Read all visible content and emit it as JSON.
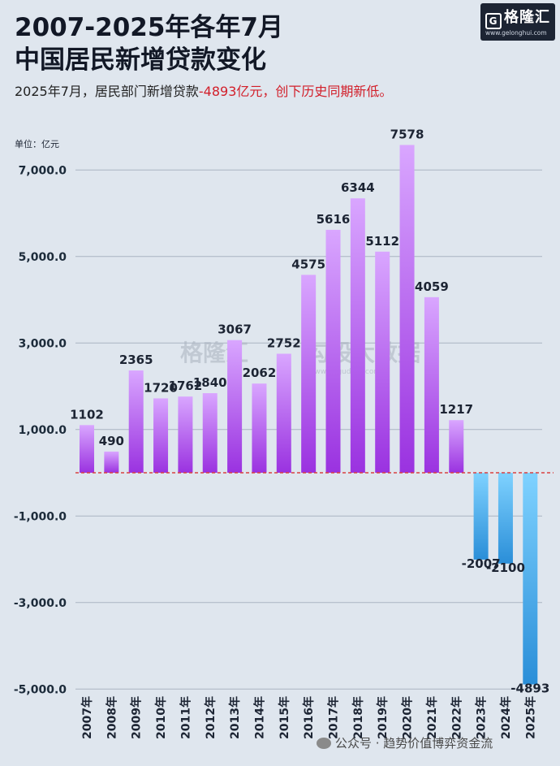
{
  "header": {
    "title_line1": "2007-2025年各年7月",
    "title_line2": "中国居民新增贷款变化",
    "subtitle_prefix": "2025年7月，居民部门新增贷款",
    "subtitle_highlight": "-4893亿元，创下历史同期新低。"
  },
  "logo": {
    "brand": "格隆汇",
    "url": "www.gelonghui.com"
  },
  "watermark": {
    "brand": "格隆汇",
    "product": "勾股大数据",
    "url": "www.gogudata.com"
  },
  "footer": {
    "text": "公众号 · 趋势价值博弈资金流"
  },
  "colors": {
    "positive_top": "#d9a6ff",
    "positive_bottom": "#9a32e0",
    "negative_top": "#7fd2ff",
    "negative_bottom": "#2a8ed8",
    "zero_line": "#d94040",
    "gridline": "#aab4c2"
  },
  "chart_data": {
    "type": "bar",
    "unit_label": "单位：亿元",
    "categories": [
      "2007年",
      "2008年",
      "2009年",
      "2010年",
      "2011年",
      "2012年",
      "2013年",
      "2014年",
      "2015年",
      "2016年",
      "2017年",
      "2018年",
      "2019年",
      "2020年",
      "2021年",
      "2022年",
      "2023年",
      "2024年",
      "2025年"
    ],
    "values": [
      1102,
      490,
      2365,
      1720,
      1762,
      1840,
      3067,
      2062,
      2752,
      4575,
      5616,
      6344,
      5112,
      7578,
      4059,
      1217,
      -2007,
      -2100,
      -4893
    ],
    "value_labels": [
      "1102",
      "490",
      "2365",
      "1720",
      "1762",
      "1840",
      "3067",
      "2062",
      "2752",
      "4575",
      "5616",
      "6344",
      "5112",
      "7578",
      "4059",
      "1217",
      "-2007",
      "-2100",
      "-4893"
    ],
    "yticks": [
      7000,
      5000,
      3000,
      1000,
      -1000,
      -3000,
      -5000
    ],
    "ytick_labels": [
      "7,000.0",
      "5,000.0",
      "3,000.0",
      "1,000.0",
      "-1,000.0",
      "-3,000.0",
      "-5,000.0"
    ],
    "ylim": [
      -5000,
      7578
    ],
    "grid": true,
    "legend": "none"
  }
}
